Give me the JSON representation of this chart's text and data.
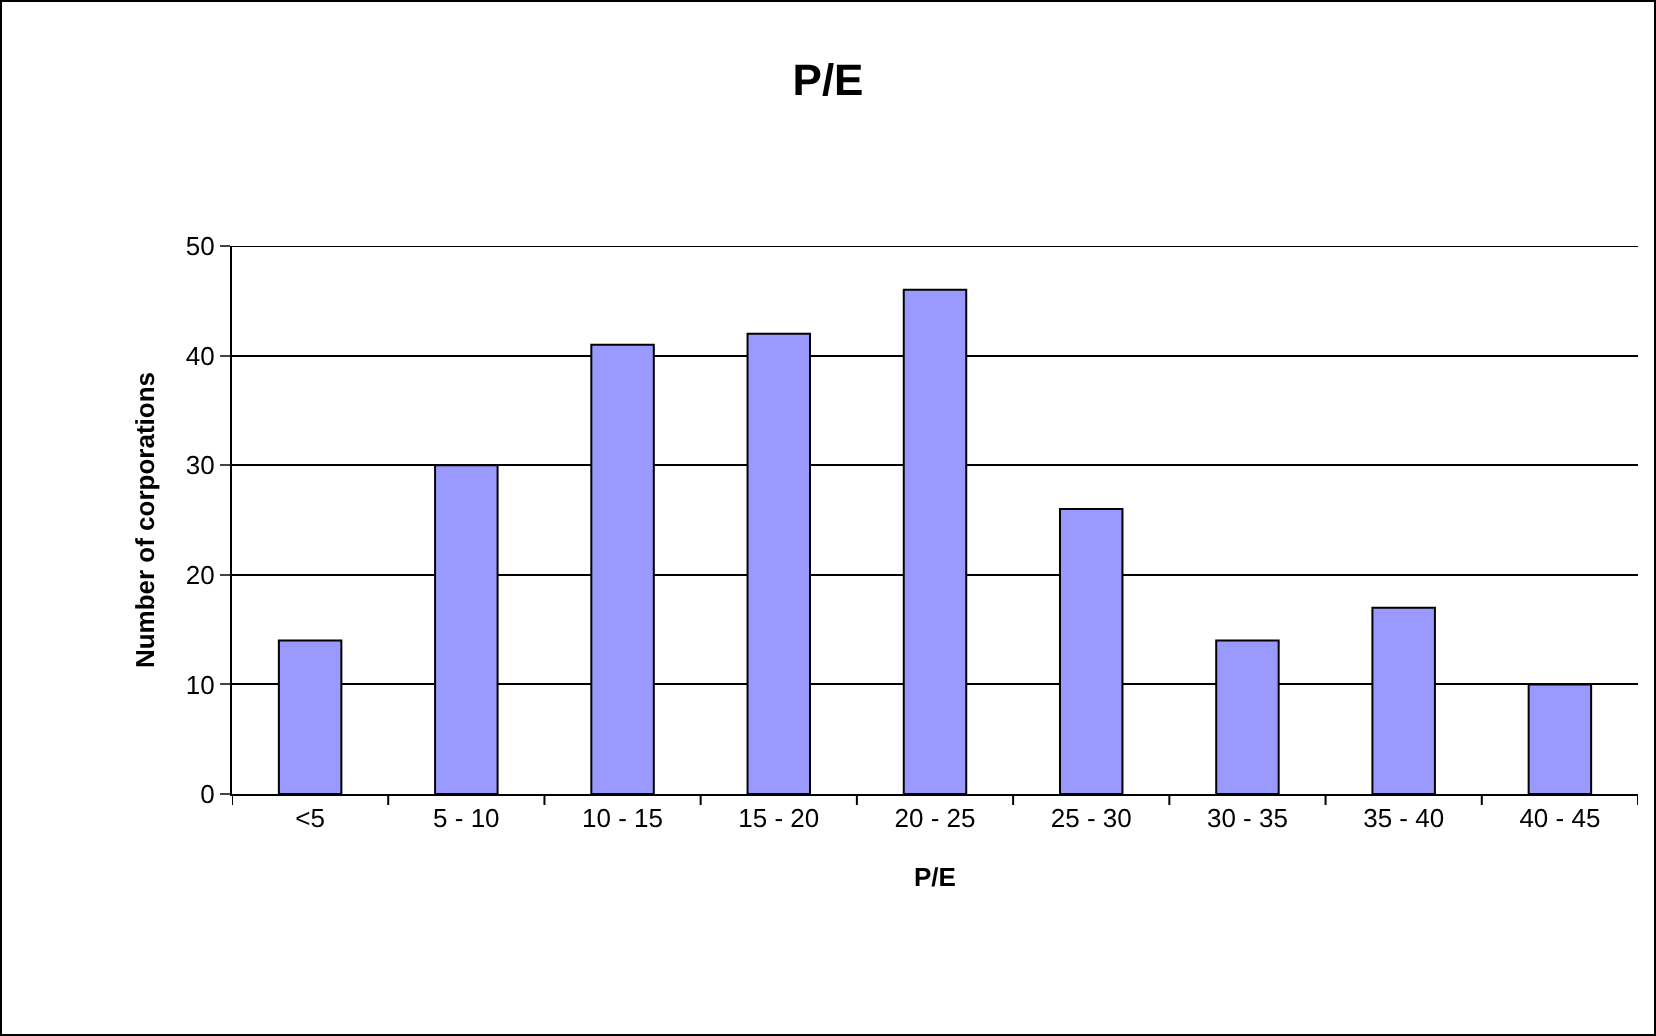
{
  "chart_data": {
    "type": "bar",
    "title": "P/E",
    "xlabel": "P/E",
    "ylabel": "Number of corporations",
    "categories": [
      "<5",
      "5 - 10",
      "10 - 15",
      "15 - 20",
      "20 - 25",
      "25 - 30",
      "30 - 35",
      "35 - 40",
      "40 - 45"
    ],
    "values": [
      14,
      30,
      41,
      42,
      46,
      26,
      14,
      17,
      10
    ],
    "color": "#9999ff",
    "ylim": [
      0,
      50
    ],
    "yticks": [
      0,
      10,
      20,
      30,
      40,
      50
    ],
    "grid": "y"
  }
}
